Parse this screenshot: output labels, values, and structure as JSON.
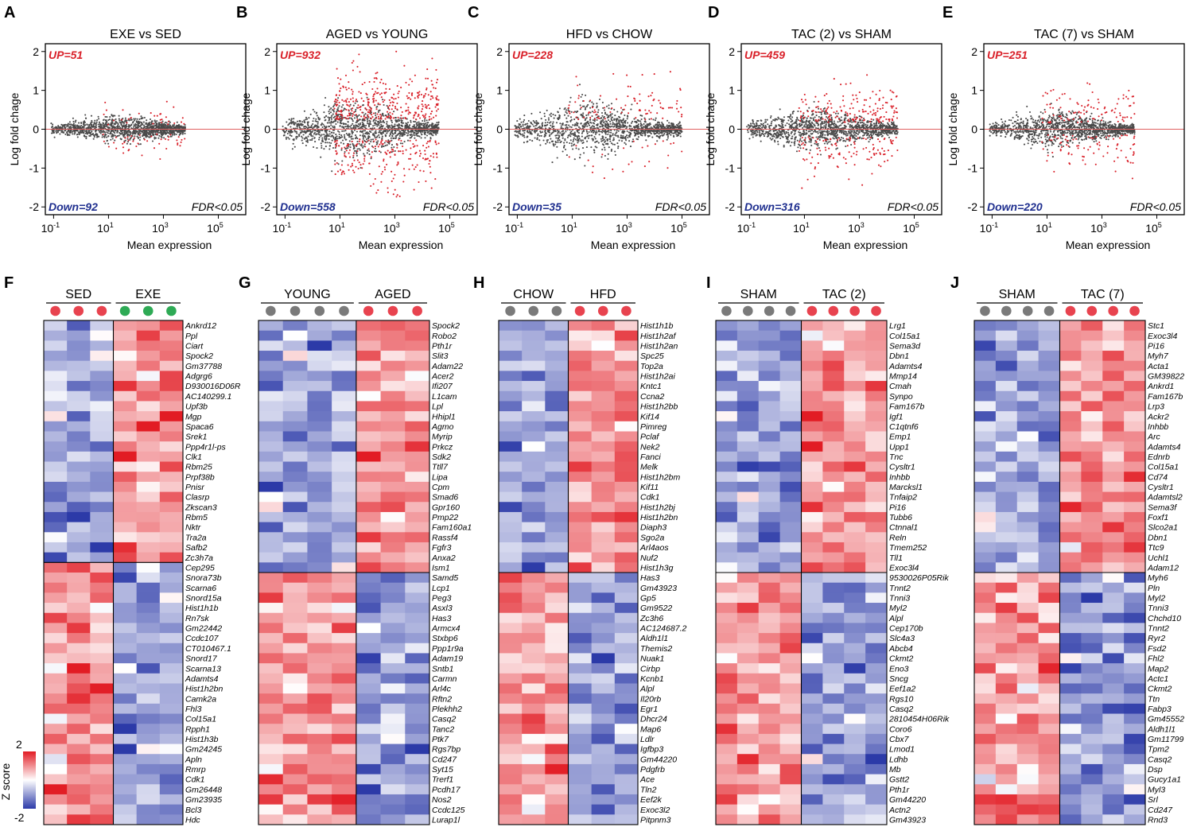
{
  "colors": {
    "up": "#d9212a",
    "down": "#1f2f8f",
    "points": "#4a4a4a",
    "hot": "#e41a1c",
    "cold": "#3a48b0",
    "sed_dot": "#e8434f",
    "exe_dot": "#2eaa55",
    "ctrl_dot": "#7a7a7a"
  },
  "chart_data": [
    {
      "panel": "A",
      "type": "scatter",
      "title": "EXE vs SED",
      "xlabel": "Mean expression",
      "ylabel": "Log fold chage",
      "xscale": "log10",
      "xlim": [
        0.05,
        1000000
      ],
      "ylim": [
        -2.2,
        2.2
      ],
      "xticks": [
        "10",
        "10",
        "10",
        "10"
      ],
      "xtick_exponents": [
        "-1",
        "1",
        "3",
        "5"
      ],
      "yticks": [
        "2",
        "1",
        "0",
        "-1",
        "-2"
      ],
      "up_label": "UP=51",
      "down_label": "Down=92",
      "threshold_label": "FDR<0.05",
      "up_count": 51,
      "down_count": 92,
      "spread": 0.25,
      "xmax_log": 3.8,
      "sig_spread": 0.5
    },
    {
      "panel": "B",
      "type": "scatter",
      "title": "AGED vs YOUNG",
      "xlabel": "Mean expression",
      "ylabel": "Log fold chage",
      "xscale": "log10",
      "xlim": [
        0.05,
        1000000
      ],
      "ylim": [
        -2.2,
        2.2
      ],
      "xticks": [
        "10",
        "10",
        "10",
        "10"
      ],
      "xtick_exponents": [
        "-1",
        "1",
        "3",
        "5"
      ],
      "yticks": [
        "2",
        "1",
        "0",
        "-1",
        "-2"
      ],
      "up_label": "UP=932",
      "down_label": "Down=558",
      "threshold_label": "FDR<0.05",
      "up_count": 932,
      "down_count": 558,
      "spread": 0.55,
      "xmax_log": 4.6,
      "sig_spread": 1.2
    },
    {
      "panel": "C",
      "type": "scatter",
      "title": "HFD vs CHOW",
      "xlabel": "Mean expression",
      "ylabel": "Log fold chage",
      "xscale": "log10",
      "xlim": [
        0.05,
        1000000
      ],
      "ylim": [
        -2.2,
        2.2
      ],
      "xticks": [
        "10",
        "10",
        "10",
        "10"
      ],
      "xtick_exponents": [
        "-1",
        "1",
        "3",
        "5"
      ],
      "yticks": [
        "2",
        "1",
        "0",
        "-1",
        "-2"
      ],
      "up_label": "UP=228",
      "down_label": "Down=35",
      "threshold_label": "FDR<0.05",
      "up_count": 228,
      "down_count": 35,
      "spread": 0.55,
      "xmax_log": 5.0,
      "sig_spread": 0.9
    },
    {
      "panel": "D",
      "type": "scatter",
      "title": "TAC (2) vs SHAM",
      "xlabel": "Mean expression",
      "ylabel": "Log fold chage",
      "xscale": "log10",
      "xlim": [
        0.05,
        1000000
      ],
      "ylim": [
        -2.2,
        2.2
      ],
      "xticks": [
        "10",
        "10",
        "10",
        "10"
      ],
      "xtick_exponents": [
        "-1",
        "1",
        "3",
        "5"
      ],
      "yticks": [
        "2",
        "1",
        "0",
        "-1",
        "-2"
      ],
      "up_label": "UP=459",
      "down_label": "Down=316",
      "threshold_label": "FDR<0.05",
      "up_count": 459,
      "down_count": 316,
      "spread": 0.4,
      "xmax_log": 4.4,
      "sig_spread": 0.9
    },
    {
      "panel": "E",
      "type": "scatter",
      "title": "TAC (7) vs SHAM",
      "xlabel": "Mean expression",
      "ylabel": "Log fold chage",
      "xscale": "log10",
      "xlim": [
        0.05,
        1000000
      ],
      "ylim": [
        -2.2,
        2.2
      ],
      "xticks": [
        "10",
        "10",
        "10",
        "10"
      ],
      "xtick_exponents": [
        "-1",
        "1",
        "3",
        "5"
      ],
      "yticks": [
        "2",
        "1",
        "0",
        "-1",
        "-2"
      ],
      "up_label": "UP=251",
      "down_label": "Down=220",
      "threshold_label": "FDR<0.05",
      "up_count": 251,
      "down_count": 220,
      "spread": 0.33,
      "xmax_log": 4.2,
      "sig_spread": 0.8
    },
    {
      "panel": "F",
      "type": "heatmap",
      "groups": [
        "SED",
        "EXE"
      ],
      "columns_per_group": [
        3,
        3
      ],
      "dot_colors": [
        "sed_dot",
        "exe_dot"
      ],
      "split_index": 24,
      "genes": [
        "Ankrd12",
        "Ppl",
        "Ciart",
        "Spock2",
        "Gm37788",
        "Adgrg6",
        "D930016D06R",
        "AC140299.1",
        "Upf3b",
        "Mgp",
        "Spaca6",
        "Srek1",
        "Ppp4r1l-ps",
        "Clk1",
        "Rbm25",
        "Prpf38b",
        "Pnisr",
        "Clasrp",
        "Zkscan3",
        "Rbm5",
        "Nktr",
        "Tra2a",
        "Safb2",
        "Zc3h7a",
        "Cep295",
        "Snora73b",
        "Scarna6",
        "Snord15a",
        "Hist1h1b",
        "Rn7sk",
        "Gm22442",
        "Ccdc107",
        "CT010467.1",
        "Snord17",
        "Scarna13",
        "Adamts4",
        "Hist1h2bn",
        "Camk2a",
        "Fhl3",
        "Col15a1",
        "Rpph1",
        "Hist1h3b",
        "Gm24245",
        "Apln",
        "Rmrp",
        "Cdk1",
        "Gm26448",
        "Gm23935",
        "Bcl3",
        "Hdc"
      ]
    },
    {
      "panel": "G",
      "type": "heatmap",
      "groups": [
        "YOUNG",
        "AGED"
      ],
      "columns_per_group": [
        4,
        3
      ],
      "dot_colors": [
        "ctrl_dot",
        "sed_dot"
      ],
      "split_index": 25,
      "genes": [
        "Spock2",
        "Robo2",
        "Pth1r",
        "Slit3",
        "Adam22",
        "Acer2",
        "Ifi207",
        "L1cam",
        "Lpl",
        "Hhipl1",
        "Agmo",
        "Myrip",
        "Prkcz",
        "Sdk2",
        "Ttll7",
        "Lipa",
        "Cpm",
        "Smad6",
        "Gpr160",
        "Pmp22",
        "Fam160a1",
        "Rassf4",
        "Fgfr3",
        "Anxa2",
        "Ism1",
        "Samd5",
        "Lcp1",
        "Peg3",
        "Asxl3",
        "Has3",
        "Armcx4",
        "Stxbp6",
        "Ppp1r9a",
        "Adam19",
        "Sntb1",
        "Carmn",
        "Arl4c",
        "Rftn2",
        "Plekhh2",
        "Casq2",
        "Tanc2",
        "Ptk7",
        "Rgs7bp",
        "Cd247",
        "Syt15",
        "Trerf1",
        "Pcdh17",
        "Nos2",
        "Ccdc125",
        "Lurap1l"
      ]
    },
    {
      "panel": "H",
      "type": "heatmap",
      "groups": [
        "CHOW",
        "HFD"
      ],
      "columns_per_group": [
        3,
        3
      ],
      "dot_colors": [
        "ctrl_dot",
        "sed_dot"
      ],
      "split_index": 25,
      "genes": [
        "Hist1h1b",
        "Hist1h2af",
        "Hist1h2an",
        "Spc25",
        "Top2a",
        "Hist1h2ai",
        "Kntc1",
        "Ccna2",
        "Hist1h2bb",
        "Kif14",
        "Pimreg",
        "Pclaf",
        "Nek2",
        "Fanci",
        "Melk",
        "Hist1h2bm",
        "Kif11",
        "Cdk1",
        "Hist1h2bj",
        "Hist1h2bn",
        "Diaph3",
        "Sgo2a",
        "Arl4aos",
        "Nuf2",
        "Hist1h3g",
        "Has3",
        "Gm43923",
        "Gp5",
        "Gm9522",
        "Zc3h6",
        "AC124687.2",
        "Aldh1l1",
        "Themis2",
        "Nuak1",
        "Cirbp",
        "Kcnb1",
        "Alpl",
        "Il20rb",
        "Egr1",
        "Dhcr24",
        "Map6",
        "Ldlr",
        "Igfbp3",
        "Gm44220",
        "Pdgfrb",
        "Ace",
        "Tln2",
        "Eef2k",
        "Exoc3l2",
        "Pitpnm3"
      ]
    },
    {
      "panel": "I",
      "type": "heatmap",
      "groups": [
        "SHAM",
        "TAC (2)"
      ],
      "columns_per_group": [
        4,
        4
      ],
      "dot_colors": [
        "ctrl_dot",
        "sed_dot"
      ],
      "split_index": 25,
      "genes": [
        "Lrg1",
        "Col15a1",
        "Sema3d",
        "Dbn1",
        "Adamts4",
        "Mmp14",
        "Cmah",
        "Synpo",
        "Fam167b",
        "Igf1",
        "C1qtnf6",
        "Emp1",
        "Upp1",
        "Tnc",
        "Cysltr1",
        "Inhbb",
        "Marcksl1",
        "Tnfaip2",
        "Pi16",
        "Tubb6",
        "Ctnnal1",
        "Reln",
        "Tmem252",
        "Tll1",
        "Exoc3l4",
        "9530026P05Rik",
        "Tnnt2",
        "Tnni3",
        "Myl2",
        "Alpl",
        "Cep170b",
        "Slc4a3",
        "Abcb4",
        "Ckmt2",
        "Eno3",
        "Sncg",
        "Eef1a2",
        "Rgs10",
        "Casq2",
        "2810454H06Rik",
        "Coro6",
        "Cbx7",
        "Lmod1",
        "Ldhb",
        "Mb",
        "Gstt2",
        "Pth1r",
        "Gm44220",
        "Actn2",
        "Gm43923"
      ]
    },
    {
      "panel": "J",
      "type": "heatmap",
      "groups": [
        "SHAM",
        "TAC (7)"
      ],
      "columns_per_group": [
        4,
        4
      ],
      "dot_colors": [
        "ctrl_dot",
        "sed_dot"
      ],
      "split_index": 25,
      "genes": [
        "Stc1",
        "Exoc3l4",
        "Pi16",
        "Myh7",
        "Acta1",
        "GM39822",
        "Ankrd1",
        "Fam167b",
        "Lrp3",
        "Ackr2",
        "Inhbb",
        "Arc",
        "Adamts4",
        "Ednrb",
        "Col15a1",
        "Cd74",
        "Cysltr1",
        "Adamtsl2",
        "Sema3f",
        "Foxf1",
        "Slco2a1",
        "Dbn1",
        "Ttc9",
        "Uchl1",
        "Adam12",
        "Myh6",
        "Pln",
        "Myl2",
        "Tnni3",
        "Chchd10",
        "Tnnt2",
        "Ryr2",
        "Fsd2",
        "Fhl2",
        "Map2",
        "Actc1",
        "Ckmt2",
        "Ttn",
        "Fabp3",
        "Gm45552",
        "Aldh1l1",
        "Gm11799",
        "Tpm2",
        "Casq2",
        "Dsp",
        "Gucy1a1",
        "Myl3",
        "Srl",
        "Cd247",
        "Rnd3"
      ]
    }
  ],
  "panel_labels": [
    "A",
    "B",
    "C",
    "D",
    "E",
    "F",
    "G",
    "H",
    "I",
    "J"
  ],
  "legend": {
    "title": "Z score",
    "max": "2",
    "min": "-2"
  }
}
